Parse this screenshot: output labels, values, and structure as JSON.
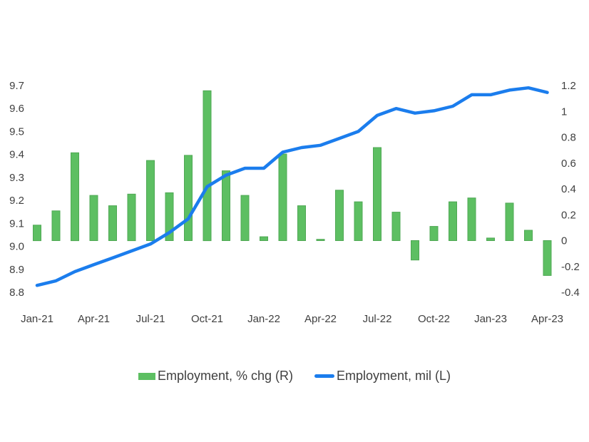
{
  "chart_data": {
    "type": "combo",
    "title": "",
    "categories": [
      "Jan-21",
      "Feb-21",
      "Mar-21",
      "Apr-21",
      "May-21",
      "Jun-21",
      "Jul-21",
      "Aug-21",
      "Sep-21",
      "Oct-21",
      "Nov-21",
      "Dec-21",
      "Jan-22",
      "Feb-22",
      "Mar-22",
      "Apr-22",
      "May-22",
      "Jun-22",
      "Jul-22",
      "Aug-22",
      "Sep-22",
      "Oct-22",
      "Nov-22",
      "Dec-22",
      "Jan-23",
      "Feb-23",
      "Mar-23",
      "Apr-23"
    ],
    "x_tick_labels": [
      "Jan-21",
      "Apr-21",
      "Jul-21",
      "Oct-21",
      "Jan-22",
      "Apr-22",
      "Jul-22",
      "Oct-22",
      "Jan-23",
      "Apr-23"
    ],
    "x_tick_every": 3,
    "series": [
      {
        "name": "Employment, % chg (R)",
        "type": "bar",
        "axis": "right",
        "color": "#5dbf62",
        "border_color": "#4fa854",
        "values": [
          0.12,
          0.23,
          0.68,
          0.35,
          0.27,
          0.36,
          0.62,
          0.37,
          0.66,
          1.16,
          0.54,
          0.35,
          0.03,
          0.67,
          0.27,
          0.01,
          0.39,
          0.3,
          0.72,
          0.22,
          -0.15,
          0.11,
          0.3,
          0.33,
          0.02,
          0.29,
          0.08,
          -0.27
        ]
      },
      {
        "name": "Employment, mil (L)",
        "type": "line",
        "axis": "left",
        "color": "#1b7ded",
        "values": [
          8.83,
          8.85,
          8.89,
          8.92,
          8.95,
          8.98,
          9.01,
          9.06,
          9.12,
          9.26,
          9.31,
          9.34,
          9.34,
          9.41,
          9.43,
          9.44,
          9.47,
          9.5,
          9.57,
          9.6,
          9.58,
          9.59,
          9.61,
          9.66,
          9.66,
          9.68,
          9.69,
          9.67
        ]
      }
    ],
    "left_axis": {
      "ticks": [
        "9.7",
        "9.6",
        "9.5",
        "9.4",
        "9.3",
        "9.2",
        "9.1",
        "9.0",
        "8.9",
        "8.8"
      ],
      "min": 8.8,
      "max": 9.7
    },
    "right_axis": {
      "ticks": [
        "1.2",
        "1",
        "0.8",
        "0.6",
        "0.4",
        "0.2",
        "0",
        "-0.2",
        "-0.4"
      ],
      "min": -0.4,
      "max": 1.2
    },
    "legend_position": "bottom",
    "grid": false,
    "text_color": "#3f3f3f",
    "background": "#ffffff"
  }
}
